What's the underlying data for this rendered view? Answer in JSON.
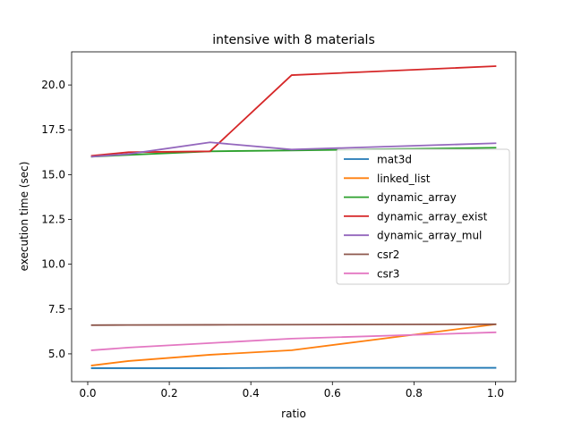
{
  "chart_data": {
    "type": "line",
    "title": "intensive with 8 materials",
    "xlabel": "ratio",
    "ylabel": "execution time (sec)",
    "xlim": [
      -0.0395,
      1.0495
    ],
    "ylim": [
      3.45,
      21.85
    ],
    "xticks": [
      0.0,
      0.2,
      0.4,
      0.6,
      0.8,
      1.0
    ],
    "xtick_labels": [
      "0.0",
      "0.2",
      "0.4",
      "0.6",
      "0.8",
      "1.0"
    ],
    "yticks": [
      5.0,
      7.5,
      10.0,
      12.5,
      15.0,
      17.5,
      20.0
    ],
    "ytick_labels": [
      "5.0",
      "7.5",
      "10.0",
      "12.5",
      "15.0",
      "17.5",
      "20.0"
    ],
    "grid": false,
    "legend": "center-right",
    "series": [
      {
        "name": "mat3d",
        "color": "#1f77b4",
        "x": [
          0.01,
          0.1,
          0.3,
          0.5,
          1.0
        ],
        "y": [
          4.2,
          4.2,
          4.2,
          4.22,
          4.22
        ]
      },
      {
        "name": "linked_list",
        "color": "#ff7f0e",
        "x": [
          0.01,
          0.1,
          0.3,
          0.5,
          1.0
        ],
        "y": [
          4.35,
          4.6,
          4.95,
          5.2,
          6.65
        ]
      },
      {
        "name": "dynamic_array",
        "color": "#2ca02c",
        "x": [
          0.01,
          0.1,
          0.3,
          0.5,
          1.0
        ],
        "y": [
          16.0,
          16.1,
          16.3,
          16.35,
          16.5
        ]
      },
      {
        "name": "dynamic_array_exist",
        "color": "#d62728",
        "x": [
          0.01,
          0.1,
          0.3,
          0.5,
          1.0
        ],
        "y": [
          16.05,
          16.25,
          16.3,
          20.55,
          21.05
        ]
      },
      {
        "name": "dynamic_array_mul",
        "color": "#9467bd",
        "x": [
          0.01,
          0.1,
          0.3,
          0.5,
          1.0
        ],
        "y": [
          16.0,
          16.15,
          16.8,
          16.4,
          16.75
        ]
      },
      {
        "name": "csr2",
        "color": "#8c564b",
        "x": [
          0.01,
          0.1,
          0.3,
          0.5,
          1.0
        ],
        "y": [
          6.6,
          6.61,
          6.62,
          6.63,
          6.65
        ]
      },
      {
        "name": "csr3",
        "color": "#e377c2",
        "x": [
          0.01,
          0.1,
          0.3,
          0.5,
          1.0
        ],
        "y": [
          5.2,
          5.35,
          5.6,
          5.85,
          6.2
        ]
      }
    ]
  }
}
